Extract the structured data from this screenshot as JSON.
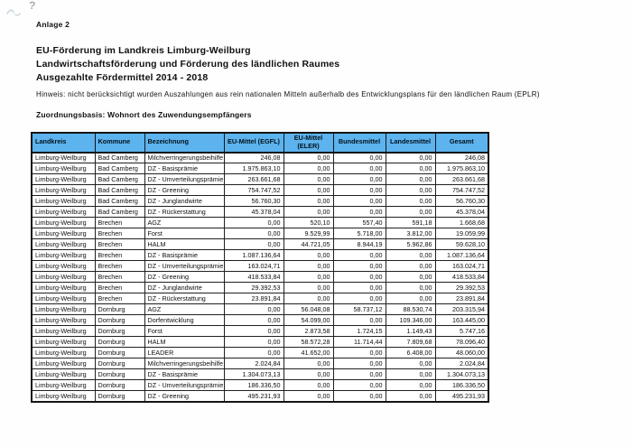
{
  "page": {
    "annotation_mark": "?",
    "attachment_label": "Anlage 2",
    "title_lines": [
      "EU-Förderung im Landkreis Limburg-Weilburg",
      "Landwirtschaftsförderung und Förderung des ländlichen Raumes",
      "Ausgezahlte Fördermittel 2014 - 2018"
    ],
    "note": "Hinweis: nicht berücksichtigt wurden Auszahlungen aus rein nationalen Mitteln außerhalb des Entwicklungsplans für den ländlichen Raum (EPLR)",
    "basis": "Zuordnungsbasis: Wohnort des Zuwendungsempfängers"
  },
  "table": {
    "header_bg": "#5cb3ee",
    "border_color": "#141414",
    "columns": [
      "Landkreis",
      "Kommune",
      "Bezeichnung",
      "EU-Mittel (EGFL)",
      "EU-Mittel (ELER)",
      "Bundesmittel",
      "Landesmittel",
      "Gesamt"
    ],
    "rows": [
      [
        "Limburg-Weilburg",
        "Bad Camberg",
        "Milchverringerungsbeihilfe",
        "246,08",
        "0,00",
        "0,00",
        "0,00",
        "246,08"
      ],
      [
        "Limburg-Weilburg",
        "Bad Camberg",
        "DZ - Basisprämie",
        "1.975.863,10",
        "0,00",
        "0,00",
        "0,00",
        "1.975.863,10"
      ],
      [
        "Limburg-Weilburg",
        "Bad Camberg",
        "DZ - Umverteilungsprämie",
        "263.661,68",
        "0,00",
        "0,00",
        "0,00",
        "263.661,68"
      ],
      [
        "Limburg-Weilburg",
        "Bad Camberg",
        "DZ - Greening",
        "754.747,52",
        "0,00",
        "0,00",
        "0,00",
        "754.747,52"
      ],
      [
        "Limburg-Weilburg",
        "Bad Camberg",
        "DZ - Junglandwirte",
        "56.760,30",
        "0,00",
        "0,00",
        "0,00",
        "56.760,30"
      ],
      [
        "Limburg-Weilburg",
        "Bad Camberg",
        "DZ - Rückerstattung",
        "45.378,04",
        "0,00",
        "0,00",
        "0,00",
        "45.378,04"
      ],
      [
        "Limburg-Weilburg",
        "Brechen",
        "AGZ",
        "0,00",
        "520,10",
        "557,40",
        "591,18",
        "1.668,68"
      ],
      [
        "Limburg-Weilburg",
        "Brechen",
        "Forst",
        "0,00",
        "9.529,99",
        "5.718,00",
        "3.812,00",
        "19.059,99"
      ],
      [
        "Limburg-Weilburg",
        "Brechen",
        "HALM",
        "0,00",
        "44.721,05",
        "8.944,19",
        "5.962,86",
        "59.628,10"
      ],
      [
        "Limburg-Weilburg",
        "Brechen",
        "DZ - Basisprämie",
        "1.087.136,64",
        "0,00",
        "0,00",
        "0,00",
        "1.087.136,64"
      ],
      [
        "Limburg-Weilburg",
        "Brechen",
        "DZ - Umverteilungsprämie",
        "163.024,71",
        "0,00",
        "0,00",
        "0,00",
        "163.024,71"
      ],
      [
        "Limburg-Weilburg",
        "Brechen",
        "DZ - Greening",
        "418.533,84",
        "0,00",
        "0,00",
        "0,00",
        "418.533,84"
      ],
      [
        "Limburg-Weilburg",
        "Brechen",
        "DZ - Junglandwirte",
        "29.392,53",
        "0,00",
        "0,00",
        "0,00",
        "29.392,53"
      ],
      [
        "Limburg-Weilburg",
        "Brechen",
        "DZ - Rückerstattung",
        "23.891,84",
        "0,00",
        "0,00",
        "0,00",
        "23.891,84"
      ],
      [
        "Limburg-Weilburg",
        "Dornburg",
        "AGZ",
        "0,00",
        "56.048,08",
        "58.737,12",
        "88.530,74",
        "203.315,94"
      ],
      [
        "Limburg-Weilburg",
        "Dornburg",
        "Dorfentwicklung",
        "0,00",
        "54.099,00",
        "0,00",
        "109.346,00",
        "163.445,00"
      ],
      [
        "Limburg-Weilburg",
        "Dornburg",
        "Forst",
        "0,00",
        "2.873,58",
        "1.724,15",
        "1.149,43",
        "5.747,16"
      ],
      [
        "Limburg-Weilburg",
        "Dornburg",
        "HALM",
        "0,00",
        "58.572,28",
        "11.714,44",
        "7.809,68",
        "78.096,40"
      ],
      [
        "Limburg-Weilburg",
        "Dornburg",
        "LEADER",
        "0,00",
        "41.652,00",
        "0,00",
        "6.408,00",
        "48.060,00"
      ],
      [
        "Limburg-Weilburg",
        "Dornburg",
        "Milchverringerungsbeihilfe",
        "2.024,84",
        "0,00",
        "0,00",
        "0,00",
        "2.024,84"
      ],
      [
        "Limburg-Weilburg",
        "Dornburg",
        "DZ - Basisprämie",
        "1.304.073,13",
        "0,00",
        "0,00",
        "0,00",
        "1.304.073,13"
      ],
      [
        "Limburg-Weilburg",
        "Dornburg",
        "DZ - Umverteilungsprämie",
        "186.336,50",
        "0,00",
        "0,00",
        "0,00",
        "186.336,50"
      ],
      [
        "Limburg-Weilburg",
        "Dornburg",
        "DZ - Greening",
        "495.231,93",
        "0,00",
        "0,00",
        "0,00",
        "495.231,93"
      ]
    ]
  }
}
